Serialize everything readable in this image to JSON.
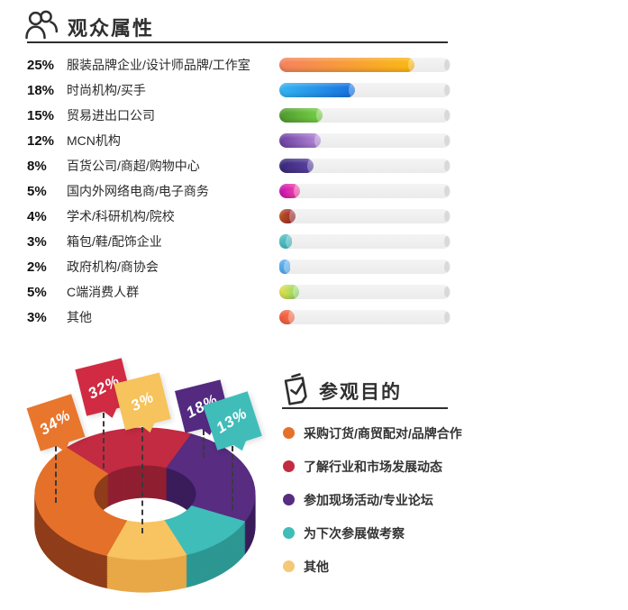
{
  "audience": {
    "title": "观众属性",
    "icon": "people-icon"
  },
  "purpose": {
    "title": "参观目的",
    "icon": "clipboard-check-icon"
  },
  "chart_data": [
    {
      "id": "audience-bars",
      "type": "bar",
      "orientation": "horizontal",
      "unit": "%",
      "title": "观众属性",
      "xlim": [
        0,
        100
      ],
      "grid": false,
      "rows": [
        {
          "pct": "25%",
          "value": 25,
          "label": "服装品牌企业/设计师品牌/工作室",
          "color_from": "#F5825E",
          "color_to": "#FBB912",
          "fill_frac": 0.79
        },
        {
          "pct": "18%",
          "value": 18,
          "label": "时尚机构/买手",
          "color_from": "#35B5F2",
          "color_to": "#156FDF",
          "fill_frac": 0.44
        },
        {
          "pct": "15%",
          "value": 15,
          "label": "贸易进出口公司",
          "color_from": "#4E9A2E",
          "color_to": "#77D246",
          "fill_frac": 0.25
        },
        {
          "pct": "12%",
          "value": 12,
          "label": "MCN机构",
          "color_from": "#6B3FA0",
          "color_to": "#B78BDB",
          "fill_frac": 0.24
        },
        {
          "pct": "8%",
          "value": 8,
          "label": "百货公司/商超/购物中心",
          "color_from": "#382878",
          "color_to": "#5D44A5",
          "fill_frac": 0.2
        },
        {
          "pct": "5%",
          "value": 5,
          "label": "国内外网络电商/电子商务",
          "color_from": "#C90CB4",
          "color_to": "#F34FA4",
          "fill_frac": 0.12
        },
        {
          "pct": "4%",
          "value": 4,
          "label": "学术/科研机构/院校",
          "color_from": "#C1541F",
          "color_to": "#932032",
          "fill_frac": 0.095
        },
        {
          "pct": "3%",
          "value": 3,
          "label": "箱包/鞋/配饰企业",
          "color_from": "#52C2C5",
          "color_to": "#3FB5BD",
          "fill_frac": 0.075
        },
        {
          "pct": "2%",
          "value": 2,
          "label": "政府机构/商协会",
          "color_from": "#55ADF0",
          "color_to": "#55ADF0",
          "fill_frac": 0.055
        },
        {
          "pct": "5%",
          "value": 5,
          "label": "C端消费人群",
          "color_from": "#EDE14E",
          "color_to": "#82D868",
          "fill_frac": 0.115
        },
        {
          "pct": "3%",
          "value": 3,
          "label": "其他",
          "color_from": "#F3593E",
          "color_to": "#F4734E",
          "fill_frac": 0.09
        }
      ]
    },
    {
      "id": "purpose-donut",
      "type": "pie",
      "style": "3d-donut",
      "title": "参观目的",
      "legend_position": "right",
      "slices": [
        {
          "label": "采购订货/商贸配对/品牌合作",
          "pct": "34%",
          "value": 34,
          "color": "#E4702A",
          "dark": "#8F3D1A",
          "flag_color": "#E8762D",
          "display_arc": [
            200,
            315
          ]
        },
        {
          "label": "了解行业和市场发展动态",
          "pct": "32%",
          "value": 32,
          "color": "#C32B42",
          "dark": "#8F1F31",
          "flag_color": "#D02B43",
          "display_arc": [
            315,
            385
          ]
        },
        {
          "label": "参加现场活动/专业论坛",
          "pct": "18%",
          "value": 18,
          "color": "#572C81",
          "dark": "#3A1C5A",
          "flag_color": "#542A80",
          "display_arc": [
            25,
            115
          ]
        },
        {
          "label": "为下次参展做考察",
          "pct": "13%",
          "value": 13,
          "color": "#3FBDB8",
          "dark": "#2D9792",
          "flag_color": "#41BDB9",
          "display_arc": [
            115,
            158
          ]
        },
        {
          "label": "其他",
          "pct": "3%",
          "value": 3,
          "color": "#F8C461",
          "dark": "#E8A847",
          "flag_color": "#F6C35C",
          "display_arc": [
            158,
            200
          ]
        }
      ]
    }
  ],
  "colors": {
    "heading": "#2f2f2f",
    "divider": "#2f2f2f",
    "bar_track": "#efefef",
    "bar_track_cap": "#d9d9d9",
    "dash_line": "#3a3a3a"
  }
}
